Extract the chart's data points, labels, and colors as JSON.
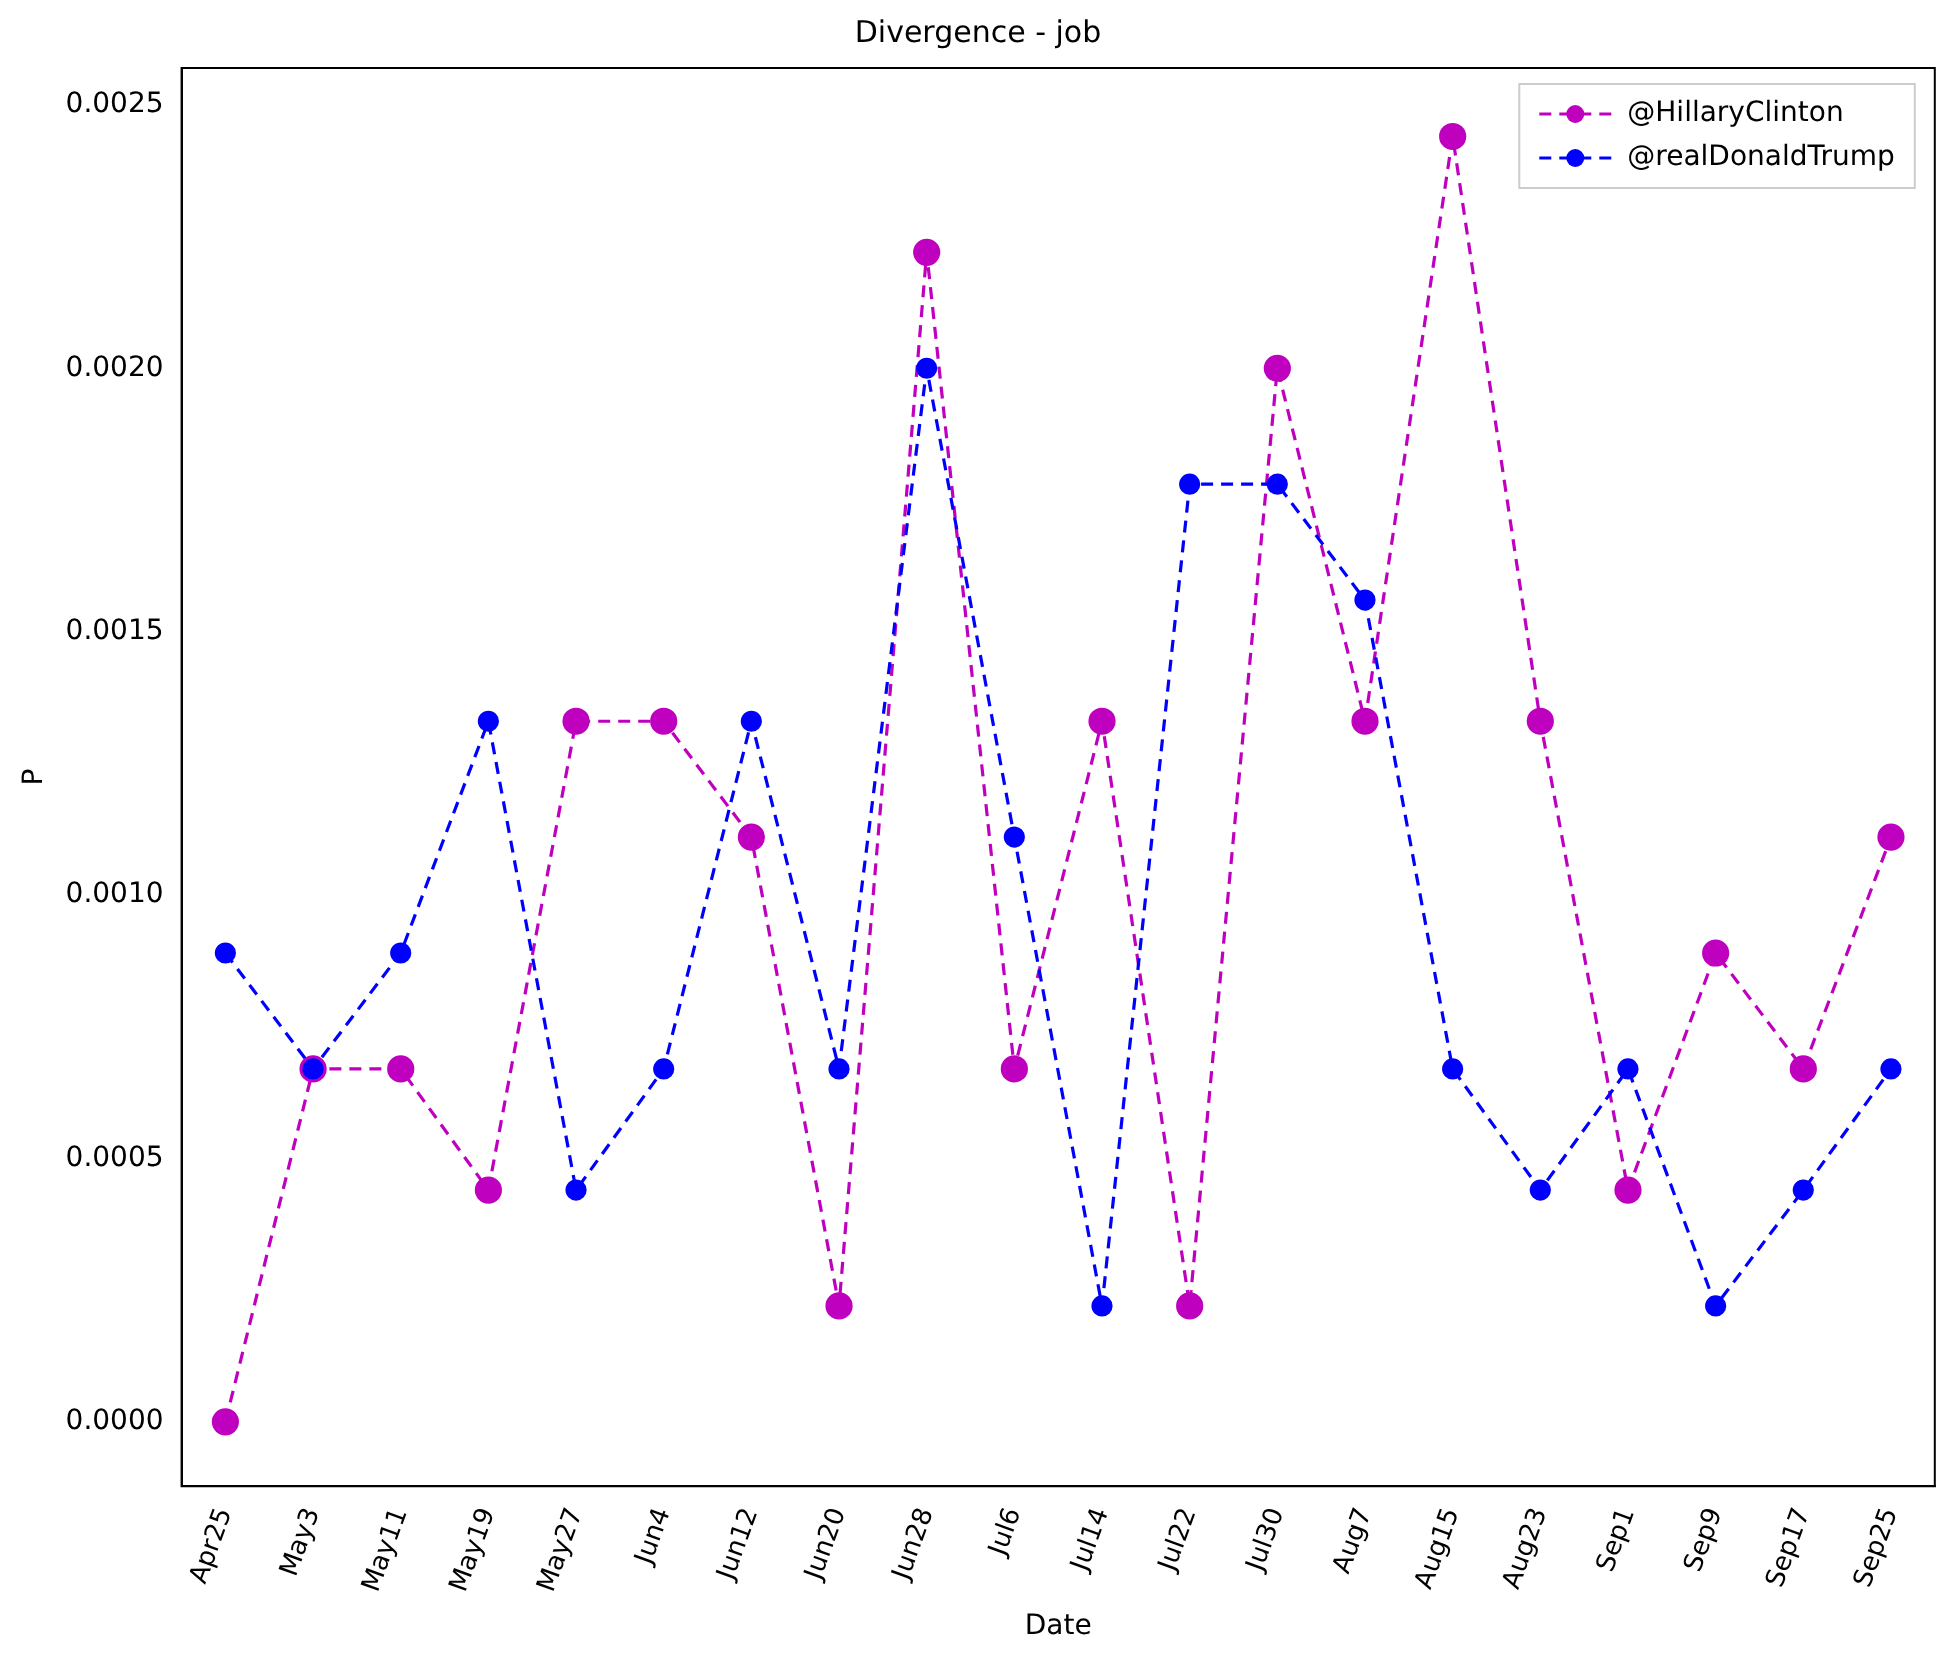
{
  "chart_data": {
    "type": "line",
    "title": "Divergence - job",
    "xlabel": "Date",
    "ylabel": "P",
    "categories": [
      "Apr25",
      "May3",
      "May11",
      "May19",
      "May27",
      "Jun4",
      "Jun12",
      "Jun20",
      "Jun28",
      "Jul6",
      "Jul14",
      "Jul22",
      "Jul30",
      "Aug7",
      "Aug15",
      "Aug23",
      "Sep1",
      "Sep9",
      "Sep17",
      "Sep25"
    ],
    "series": [
      {
        "name": "@HillaryClinton",
        "color": "#bf00bf",
        "values": [
          0,
          0.00067,
          0.00067,
          0.00044,
          0.00133,
          0.00133,
          0.00111,
          0.00022,
          0.00222,
          0.00067,
          0.00133,
          0.00022,
          0.002,
          0.00133,
          0.00244,
          0.00133,
          0.00044,
          0.00089,
          0.00067,
          0.00111
        ]
      },
      {
        "name": "@realDonaldTrump",
        "color": "#0000ff",
        "values": [
          0.00089,
          0.00067,
          0.00089,
          0.00133,
          0.00044,
          0.00067,
          0.00133,
          0.00067,
          0.002,
          0.00111,
          0.00022,
          0.00178,
          0.00178,
          0.00156,
          0.00067,
          0.00044,
          0.00067,
          0.00022,
          0.00044,
          0.00067
        ]
      }
    ],
    "ylim": [
      -0.000122,
      0.00257
    ],
    "yticks": [
      {
        "value": 0,
        "label": "0.0000"
      },
      {
        "value": 0.0005,
        "label": "0.0005"
      },
      {
        "value": 0.001,
        "label": "0.0010"
      },
      {
        "value": 0.0015,
        "label": "0.0015"
      },
      {
        "value": 0.002,
        "label": "0.0020"
      },
      {
        "value": 0.0025,
        "label": "0.0025"
      }
    ],
    "grid": false,
    "legend": "top right",
    "marker": "circle",
    "line_style": "dashed"
  }
}
